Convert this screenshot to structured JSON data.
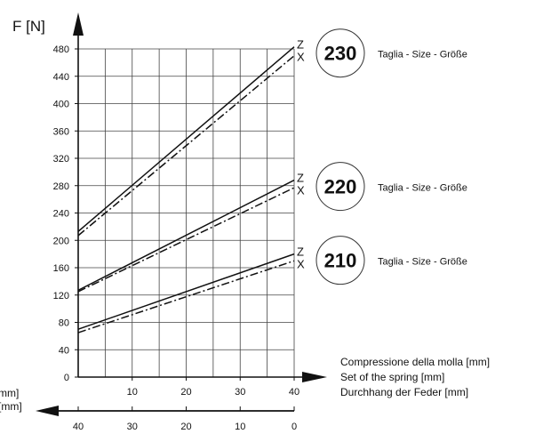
{
  "chart_data": {
    "type": "line",
    "y_axis_label": "F [N]",
    "y_ticks": [
      0,
      40,
      80,
      120,
      160,
      200,
      240,
      280,
      320,
      360,
      400,
      440,
      480
    ],
    "ylim": [
      0,
      480
    ],
    "x_ticks": [
      10,
      20,
      30,
      40
    ],
    "xlim": [
      0,
      40
    ],
    "x2_ticks": [
      40,
      30,
      20,
      10,
      0
    ],
    "x_axis_description": [
      "Compressione della molla [mm]",
      "Set of the spring [mm]",
      "Durchhang der Feder [mm]"
    ],
    "x2_axis_description": [
      "mm]",
      "[mm]"
    ],
    "grid": true,
    "groups": [
      {
        "size": "230",
        "label": "Taglia - Size - Größe",
        "series": [
          {
            "name": "Z",
            "style": "solid",
            "x": [
              0,
              40
            ],
            "y": [
              213,
              483
            ]
          },
          {
            "name": "X",
            "style": "dash-dot",
            "x": [
              0,
              40
            ],
            "y": [
              207,
              470
            ]
          }
        ]
      },
      {
        "size": "220",
        "label": "Taglia - Size - Größe",
        "series": [
          {
            "name": "Z",
            "style": "solid",
            "x": [
              0,
              40
            ],
            "y": [
              127,
              288
            ]
          },
          {
            "name": "X",
            "style": "dash-dot",
            "x": [
              0,
              40
            ],
            "y": [
              125,
              277
            ]
          }
        ]
      },
      {
        "size": "210",
        "label": "Taglia - Size - Größe",
        "series": [
          {
            "name": "Z",
            "style": "solid",
            "x": [
              0,
              40
            ],
            "y": [
              70,
              180
            ]
          },
          {
            "name": "X",
            "style": "dash-dot",
            "x": [
              0,
              40
            ],
            "y": [
              65,
              170
            ]
          }
        ]
      }
    ]
  }
}
